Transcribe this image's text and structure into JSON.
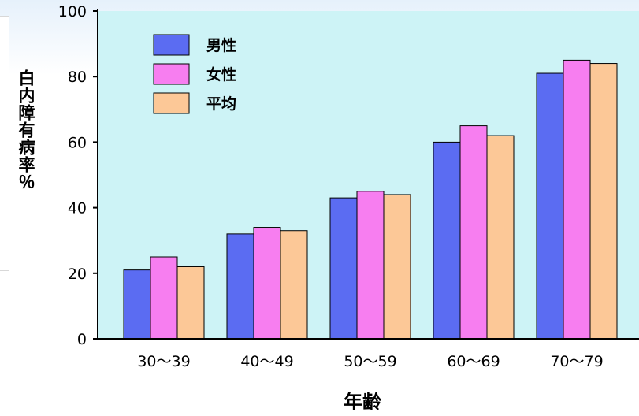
{
  "chart_data": {
    "type": "bar",
    "xlabel": "年齢",
    "ylabel": "白内障有病率％",
    "categories": [
      "30～39",
      "40～49",
      "50～59",
      "60～69",
      "70～79"
    ],
    "series": [
      {
        "name": "男性",
        "color": "#5b6cf2",
        "values": [
          21,
          32,
          43,
          60,
          81
        ]
      },
      {
        "name": "女性",
        "color": "#f77ef0",
        "values": [
          25,
          34,
          45,
          65,
          85
        ]
      },
      {
        "name": "平均",
        "color": "#fcc897",
        "values": [
          22,
          33,
          44,
          62,
          84
        ]
      }
    ],
    "ylim": [
      0,
      100
    ],
    "yticks": [
      "0",
      "20",
      "40",
      "60",
      "80",
      "100"
    ],
    "plot_background": "#cdf3f6",
    "grid": false,
    "legend_position": "top-left"
  }
}
